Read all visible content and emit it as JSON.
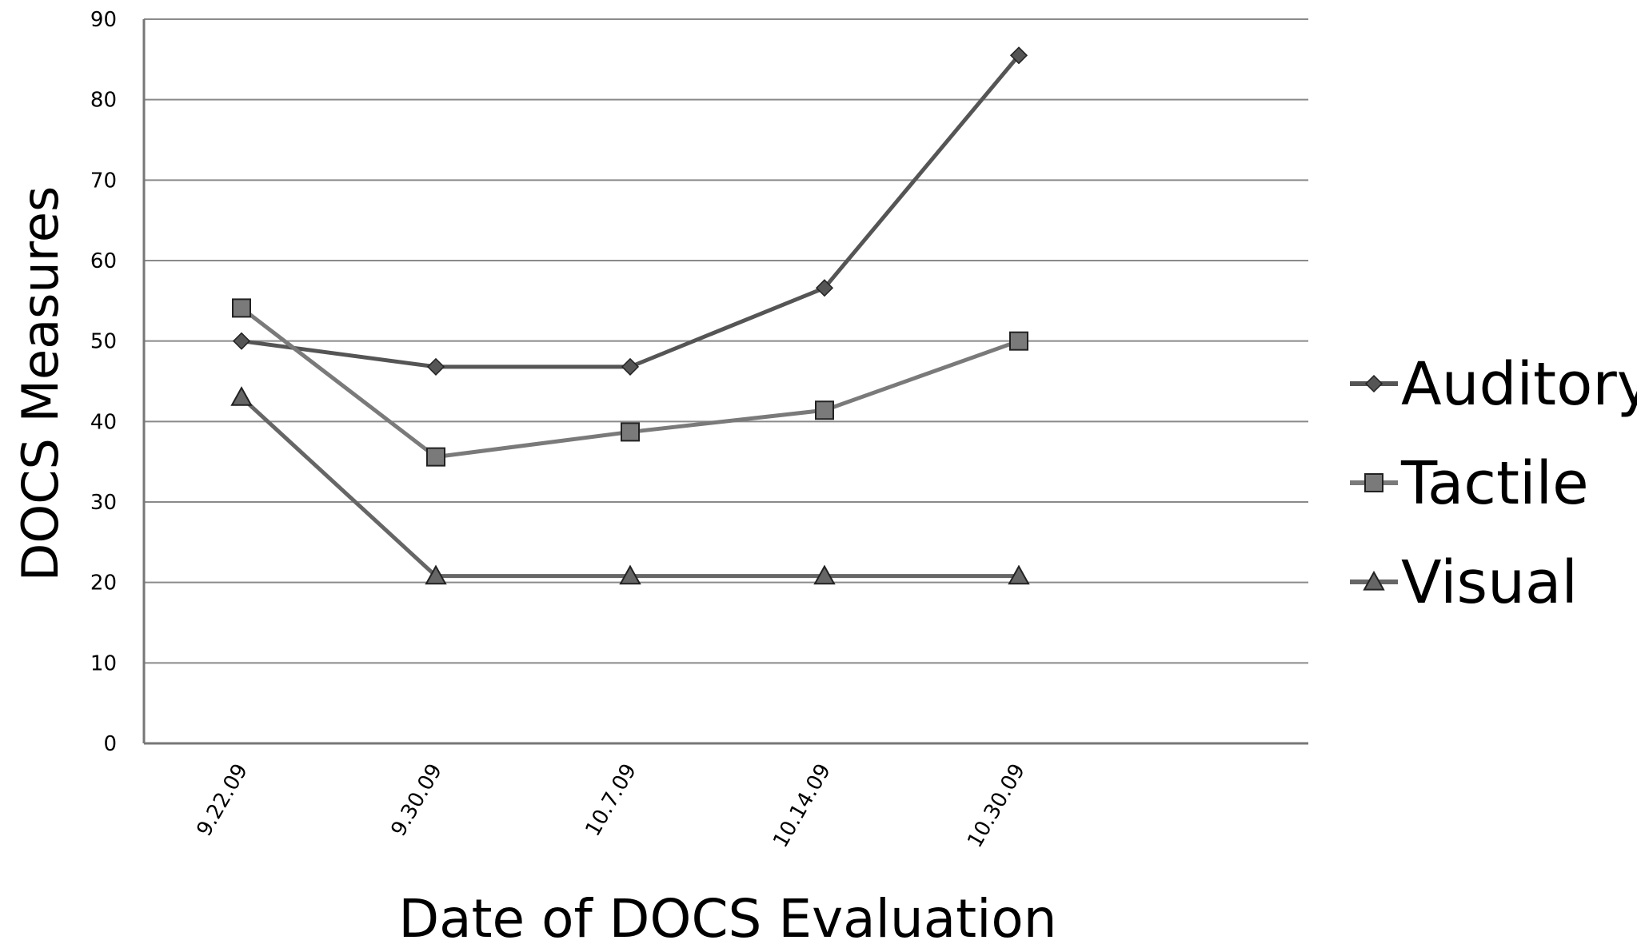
{
  "chart_data": {
    "type": "line",
    "title": "",
    "xlabel": "Date of DOCS Evaluation",
    "ylabel": "DOCS Measures",
    "categories": [
      "9.22.09",
      "9.30.09",
      "10.7.09",
      "10.14.09",
      "10.30.09"
    ],
    "ylim": [
      0,
      90
    ],
    "yticks": [
      0,
      10,
      20,
      30,
      40,
      50,
      60,
      70,
      80,
      90
    ],
    "grid": true,
    "legend_position": "right",
    "series": [
      {
        "name": "Auditory",
        "values": [
          50,
          46.8,
          46.8,
          56.6,
          85.5
        ],
        "color": "#555555",
        "marker": "diamond"
      },
      {
        "name": "Tactile",
        "values": [
          54.1,
          35.6,
          38.7,
          41.4,
          50
        ],
        "color": "#7a7a7a",
        "marker": "square"
      },
      {
        "name": "Visual",
        "values": [
          43,
          20.8,
          20.8,
          20.8,
          20.8
        ],
        "color": "#666666",
        "marker": "triangle"
      }
    ]
  }
}
